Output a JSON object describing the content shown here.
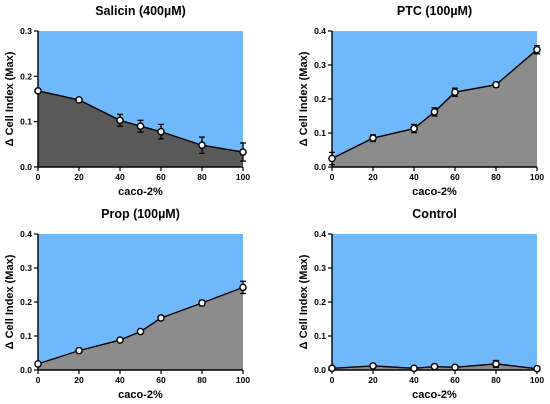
{
  "chart_data": [
    {
      "type": "area",
      "title": "Salicin (400µM)",
      "xlabel": "caco-2%",
      "ylabel": "Δ Cell Index (Max)",
      "xlim": [
        0,
        100
      ],
      "ylim": [
        0,
        0.3
      ],
      "xticks": [
        0,
        20,
        40,
        60,
        80,
        100
      ],
      "yticks": [
        0.0,
        0.1,
        0.2,
        0.3
      ],
      "ytick_labels": [
        "0.0",
        "0.1",
        "0.2",
        "0.3"
      ],
      "x": [
        0,
        20,
        40,
        50,
        60,
        80,
        100
      ],
      "y": [
        0.168,
        0.148,
        0.103,
        0.09,
        0.078,
        0.048,
        0.033
      ],
      "error": [
        0.004,
        0.003,
        0.013,
        0.013,
        0.016,
        0.018,
        0.02
      ],
      "fill_color": "#595959",
      "background_color": "#6eb8fb"
    },
    {
      "type": "area",
      "title": "PTC (100µM)",
      "xlabel": "caco-2%",
      "ylabel": "Δ Cell Index (Max)",
      "xlim": [
        0,
        100
      ],
      "ylim": [
        0,
        0.4
      ],
      "xticks": [
        0,
        20,
        40,
        60,
        80,
        100
      ],
      "yticks": [
        0.0,
        0.1,
        0.2,
        0.3,
        0.4
      ],
      "ytick_labels": [
        "0.0",
        "0.1",
        "0.2",
        "0.3",
        "0.4"
      ],
      "x": [
        0,
        20,
        40,
        50,
        60,
        80,
        100
      ],
      "y": [
        0.025,
        0.085,
        0.113,
        0.162,
        0.22,
        0.242,
        0.345
      ],
      "error": [
        0.018,
        0.01,
        0.012,
        0.012,
        0.012,
        0.007,
        0.012
      ],
      "fill_color": "#8c8c8c",
      "background_color": "#6eb8fb"
    },
    {
      "type": "area",
      "title": "Prop (100µM)",
      "xlabel": "caco-2%",
      "ylabel": "Δ Cell Index (Max)",
      "xlim": [
        0,
        100
      ],
      "ylim": [
        0,
        0.4
      ],
      "xticks": [
        0,
        20,
        40,
        60,
        80,
        100
      ],
      "yticks": [
        0.0,
        0.1,
        0.2,
        0.3,
        0.4
      ],
      "ytick_labels": [
        "0.0",
        "0.1",
        "0.2",
        "0.3",
        "0.4"
      ],
      "x": [
        0,
        20,
        40,
        50,
        60,
        80,
        100
      ],
      "y": [
        0.018,
        0.057,
        0.088,
        0.113,
        0.153,
        0.197,
        0.243
      ],
      "error": [
        0.005,
        0.006,
        0.004,
        0.004,
        0.004,
        0.008,
        0.018
      ],
      "fill_color": "#8c8c8c",
      "background_color": "#6eb8fb"
    },
    {
      "type": "area",
      "title": "Control",
      "xlabel": "caco-2%",
      "ylabel": "Δ Cell Index (Max)",
      "xlim": [
        0,
        100
      ],
      "ylim": [
        0,
        0.4
      ],
      "xticks": [
        0,
        20,
        40,
        60,
        80,
        100
      ],
      "yticks": [
        0.0,
        0.1,
        0.2,
        0.3,
        0.4
      ],
      "ytick_labels": [
        "0.0",
        "0.1",
        "0.2",
        "0.3",
        "0.4"
      ],
      "x": [
        0,
        20,
        40,
        50,
        60,
        80,
        100
      ],
      "y": [
        0.005,
        0.012,
        0.005,
        0.01,
        0.008,
        0.018,
        0.004
      ],
      "error": [
        0.003,
        0.006,
        0.003,
        0.004,
        0.004,
        0.01,
        0.003
      ],
      "fill_color": "#8c8c8c",
      "background_color": "#6eb8fb"
    }
  ]
}
